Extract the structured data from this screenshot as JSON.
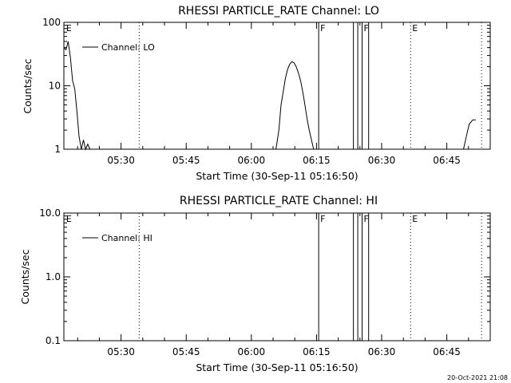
{
  "chart_data": [
    {
      "type": "line",
      "title": "RHESSI PARTICLE_RATE Channel: LO",
      "xlabel": "Start Time (30-Sep-11 05:16:50)",
      "ylabel": "Counts/sec",
      "yscale": "log",
      "ylim": [
        1,
        100
      ],
      "xlim": [
        "05:16:50",
        "06:55:00"
      ],
      "ytick_labels": [
        "1",
        "10",
        "100"
      ],
      "xtick_labels": [
        "05:30",
        "05:45",
        "06:00",
        "06:15",
        "06:30",
        "06:45"
      ],
      "legend": "Channel: LO",
      "legend_position": "top-left",
      "series": [
        {
          "name": "Channel: LO",
          "points": [
            [
              "05:16:50",
              40
            ],
            [
              "05:17:20",
              37
            ],
            [
              "05:17:50",
              50
            ],
            [
              "05:18:20",
              28
            ],
            [
              "05:18:50",
              12
            ],
            [
              "05:19:20",
              9
            ],
            [
              "05:19:50",
              4
            ],
            [
              "05:20:20",
              1.6
            ],
            [
              "05:20:50",
              1
            ],
            [
              "05:21:20",
              1.4
            ],
            [
              "05:21:50",
              1
            ],
            [
              "05:22:20",
              1.2
            ],
            [
              "05:22:50",
              1
            ]
          ]
        },
        {
          "name": "Channel: LO",
          "points": [
            [
              "06:05:40",
              1
            ],
            [
              "06:06:20",
              2
            ],
            [
              "06:06:50",
              5
            ],
            [
              "06:07:20",
              8
            ],
            [
              "06:07:50",
              13
            ],
            [
              "06:08:20",
              18
            ],
            [
              "06:08:50",
              22
            ],
            [
              "06:09:20",
              24
            ],
            [
              "06:09:50",
              23
            ],
            [
              "06:10:20",
              20
            ],
            [
              "06:10:50",
              16
            ],
            [
              "06:11:20",
              12
            ],
            [
              "06:11:50",
              8
            ],
            [
              "06:12:20",
              5
            ],
            [
              "06:12:50",
              3
            ],
            [
              "06:13:20",
              2
            ],
            [
              "06:13:50",
              1.4
            ],
            [
              "06:14:20",
              1
            ]
          ]
        },
        {
          "name": "Channel: LO",
          "points": [
            [
              "06:48:50",
              1
            ],
            [
              "06:49:30",
              1.6
            ],
            [
              "06:50:10",
              2.5
            ],
            [
              "06:51:00",
              2.9
            ],
            [
              "06:51:40",
              2.9
            ]
          ]
        }
      ]
    },
    {
      "type": "line",
      "title": "RHESSI PARTICLE_RATE Channel: HI",
      "xlabel": "Start Time (30-Sep-11 05:16:50)",
      "ylabel": "Counts/sec",
      "yscale": "log",
      "ylim": [
        0.1,
        10
      ],
      "xlim": [
        "05:16:50",
        "06:55:00"
      ],
      "ytick_labels": [
        "0.1",
        "1.0",
        "10.0"
      ],
      "xtick_labels": [
        "05:30",
        "05:45",
        "06:00",
        "06:15",
        "06:30",
        "06:45"
      ],
      "legend": "Channel: HI",
      "legend_position": "top-left",
      "series": [
        {
          "name": "Channel: HI",
          "points": []
        }
      ]
    }
  ],
  "markers": [
    {
      "time": "05:17:00",
      "label": "E",
      "style": "none"
    },
    {
      "time": "05:34:10",
      "label": "",
      "style": "dotted"
    },
    {
      "time": "06:15:30",
      "label": "F",
      "style": "solid"
    },
    {
      "time": "06:23:30",
      "label": "",
      "style": "solid"
    },
    {
      "time": "06:24:30",
      "label": "",
      "style": "solid"
    },
    {
      "time": "06:25:30",
      "label": "F",
      "style": "solid"
    },
    {
      "time": "06:27:00",
      "label": "",
      "style": "solid"
    },
    {
      "time": "06:36:40",
      "label": "E",
      "style": "dotted"
    },
    {
      "time": "06:53:00",
      "label": "",
      "style": "dotted"
    }
  ],
  "timestamp": "20-Oct-2021 21:08"
}
